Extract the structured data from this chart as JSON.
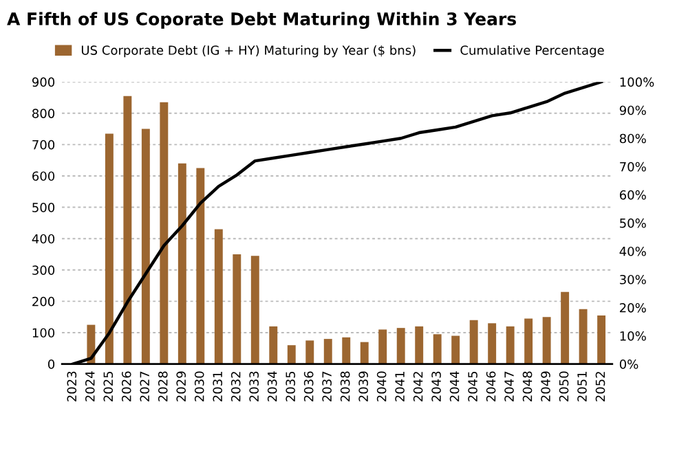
{
  "chart_data": {
    "type": "bar",
    "title": "A Fifth of US Coporate Debt Maturing Within 3 Years",
    "categories": [
      "2023",
      "2024",
      "2025",
      "2026",
      "2027",
      "2028",
      "2029",
      "2030",
      "2031",
      "2032",
      "2033",
      "2034",
      "2035",
      "2036",
      "2037",
      "2038",
      "2039",
      "2040",
      "2041",
      "2042",
      "2043",
      "2044",
      "2045",
      "2046",
      "2047",
      "2048",
      "2049",
      "2050",
      "2051",
      "2052"
    ],
    "series": [
      {
        "name": "US Corporate Debt (IG + HY) Maturing by Year ($ bns)",
        "color": "#9c6630",
        "values": [
          null,
          125,
          735,
          855,
          750,
          835,
          640,
          625,
          430,
          350,
          345,
          120,
          60,
          75,
          80,
          85,
          70,
          110,
          115,
          120,
          95,
          90,
          140,
          130,
          120,
          145,
          150,
          230,
          175,
          155
        ]
      },
      {
        "name": "Cumulative Percentage",
        "type": "line",
        "axis": "y2",
        "color": "#000000",
        "values": [
          0,
          2,
          11,
          22,
          32,
          42,
          49,
          57,
          63,
          67,
          72,
          73,
          74,
          75,
          76,
          77,
          78,
          79,
          80,
          82,
          83,
          84,
          86,
          88,
          89,
          91,
          93,
          96,
          98,
          100
        ]
      }
    ],
    "ylim": [
      0,
      900
    ],
    "yticks": [
      0,
      100,
      200,
      300,
      400,
      500,
      600,
      700,
      800,
      900
    ],
    "y2lim": [
      0,
      100
    ],
    "y2ticks": [
      {
        "value": 0,
        "label": "0%"
      },
      {
        "value": 10,
        "label": "10%"
      },
      {
        "value": 20,
        "label": "20%"
      },
      {
        "value": 30,
        "label": "30%"
      },
      {
        "value": 40,
        "label": "40%"
      },
      {
        "value": 50,
        "label": "50%"
      },
      {
        "value": 60,
        "label": "60%"
      },
      {
        "value": 70,
        "label": "70%"
      },
      {
        "value": 80,
        "label": "80%"
      },
      {
        "value": 90,
        "label": "90%"
      },
      {
        "value": 100,
        "label": "100%"
      }
    ],
    "grid": "y",
    "legend": "top",
    "marker": "none",
    "line_style": "solid"
  }
}
